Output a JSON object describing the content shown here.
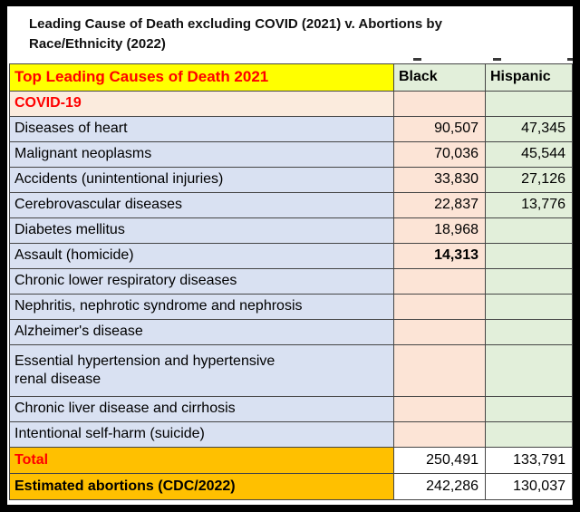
{
  "title": {
    "line1": "Leading Cause of Death excluding COVID (2021) v. Abortions by",
    "line2": "Race/Ethnicity (2022)"
  },
  "table": {
    "header": {
      "causes": "Top Leading Causes of Death 2021",
      "black": "Black",
      "hispanic": "Hispanic"
    },
    "rows": [
      {
        "label": "COVID-19",
        "black": "",
        "hispanic": "",
        "label_style": "covid"
      },
      {
        "label": "Diseases of heart",
        "black": "90,507",
        "hispanic": "47,345"
      },
      {
        "label": "Malignant neoplasms",
        "black": "70,036",
        "hispanic": "45,544"
      },
      {
        "label": "Accidents (unintentional injuries)",
        "black": "33,830",
        "hispanic": "27,126"
      },
      {
        "label": "Cerebrovascular diseases",
        "black": "22,837",
        "hispanic": "13,776"
      },
      {
        "label": "Diabetes mellitus",
        "black": "18,968",
        "hispanic": ""
      },
      {
        "label": "Assault (homicide)",
        "black": "14,313",
        "hispanic": "",
        "black_bold": true
      },
      {
        "label": "Chronic lower respiratory diseases",
        "black": "",
        "hispanic": ""
      },
      {
        "label": "Nephritis, nephrotic syndrome and nephrosis",
        "black": "",
        "hispanic": ""
      },
      {
        "label": "Alzheimer's disease",
        "black": "",
        "hispanic": ""
      },
      {
        "label": "Essential hypertension and hypertensive\nrenal disease",
        "black": "",
        "hispanic": "",
        "tall": true
      },
      {
        "label": "Chronic liver disease and cirrhosis",
        "black": "",
        "hispanic": ""
      },
      {
        "label": "Intentional self-harm (suicide)",
        "black": "",
        "hispanic": ""
      }
    ],
    "total_row": {
      "label": "Total",
      "black": "250,491",
      "hispanic": "133,791"
    },
    "abortions_row": {
      "label": "Estimated abortions (CDC/2022)",
      "black": "242,286",
      "hispanic": "130,037"
    }
  },
  "chart_data": {
    "type": "table",
    "title": "Leading Cause of Death excluding COVID (2021) v. Abortions by Race/Ethnicity (2022)",
    "columns": [
      "Top Leading Causes of Death 2021",
      "Black",
      "Hispanic"
    ],
    "rows": [
      [
        "COVID-19",
        null,
        null
      ],
      [
        "Diseases of heart",
        90507,
        47345
      ],
      [
        "Malignant neoplasms",
        70036,
        45544
      ],
      [
        "Accidents (unintentional injuries)",
        33830,
        27126
      ],
      [
        "Cerebrovascular diseases",
        22837,
        13776
      ],
      [
        "Diabetes mellitus",
        18968,
        null
      ],
      [
        "Assault (homicide)",
        14313,
        null
      ],
      [
        "Chronic lower respiratory diseases",
        null,
        null
      ],
      [
        "Nephritis, nephrotic syndrome and nephrosis",
        null,
        null
      ],
      [
        "Alzheimer's disease",
        null,
        null
      ],
      [
        "Essential hypertension and hypertensive renal disease",
        null,
        null
      ],
      [
        "Chronic liver disease and cirrhosis",
        null,
        null
      ],
      [
        "Intentional self-harm (suicide)",
        null,
        null
      ],
      [
        "Total",
        250491,
        133791
      ],
      [
        "Estimated abortions (CDC/2022)",
        242286,
        130037
      ]
    ]
  },
  "colors": {
    "header_causes_bg": "#FFFF00",
    "header_causes_text": "#FF0000",
    "header_values_bg": "#E2EFDA",
    "label_column_bg": "#D9E1F2",
    "black_column_bg": "#FCE4D6",
    "hispanic_column_bg": "#E2EFDA",
    "covid_label_bg": "#FBEBDD",
    "totals_bg": "#FFC000",
    "totals_text_red": "#FF0000",
    "grid_line": "#454545"
  }
}
